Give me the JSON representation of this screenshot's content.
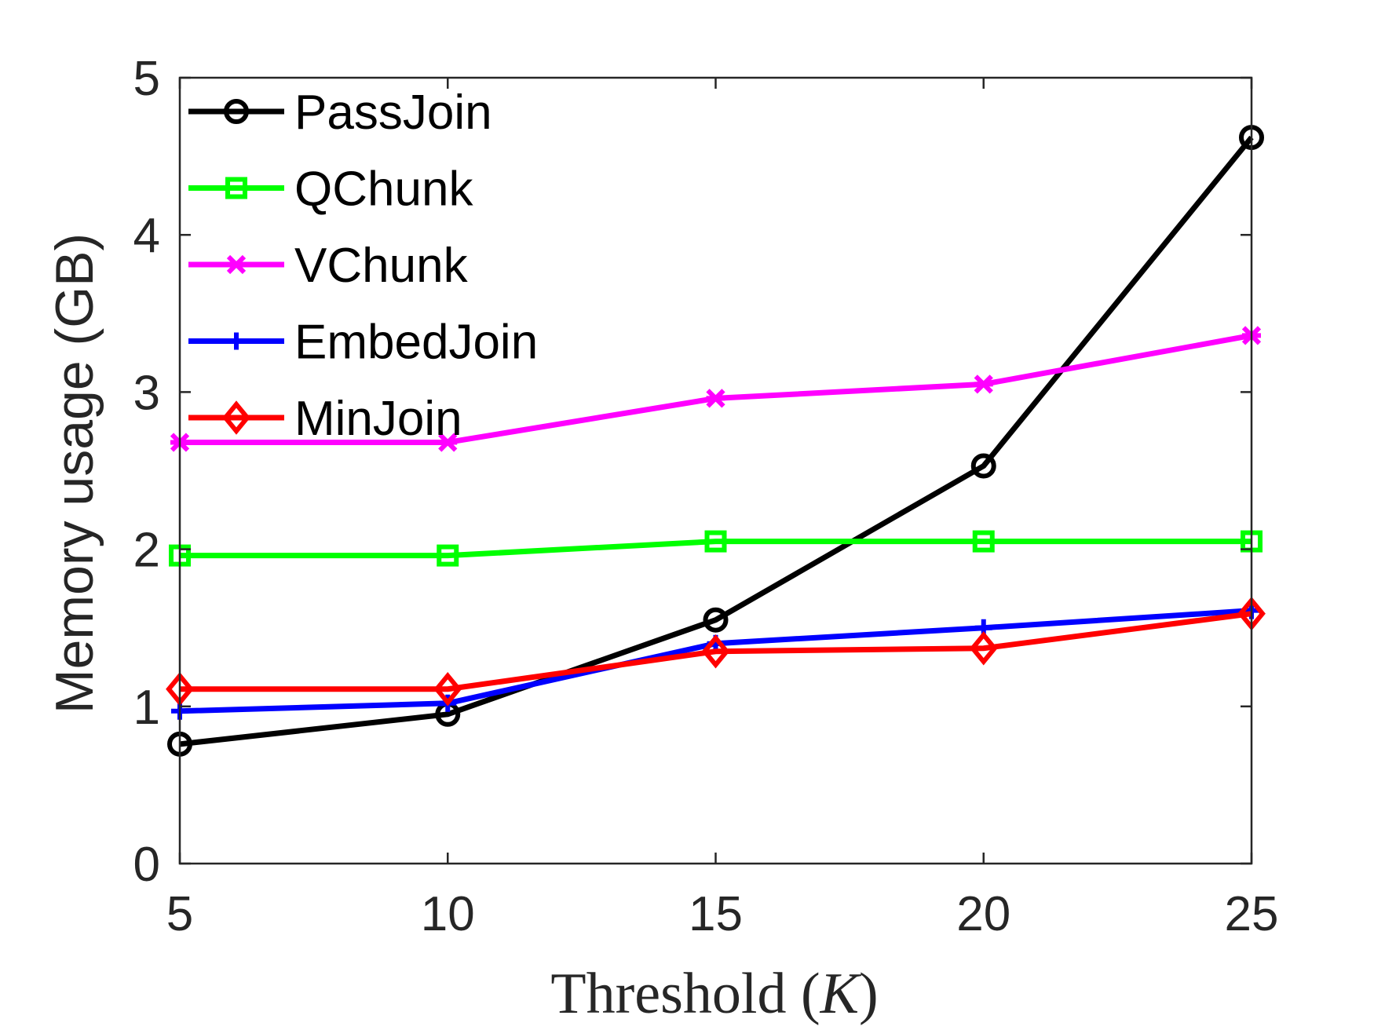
{
  "chart_data": {
    "type": "line",
    "title": "",
    "xlabel_text": "Threshold (",
    "xlabel_var": "K",
    "xlabel_close": ")",
    "ylabel": "Memory usage (GB)",
    "x": [
      5,
      10,
      15,
      20,
      25
    ],
    "xlim": [
      5,
      25
    ],
    "ylim": [
      0,
      5
    ],
    "xticks": [
      5,
      10,
      15,
      20,
      25
    ],
    "yticks": [
      0,
      1,
      2,
      3,
      4,
      5
    ],
    "grid": false,
    "legend_position": "top-left",
    "series": [
      {
        "name": "PassJoin",
        "color": "#000000",
        "marker": "circle",
        "values": [
          0.76,
          0.95,
          1.55,
          2.53,
          4.62
        ]
      },
      {
        "name": "QChunk",
        "color": "#00ff00",
        "marker": "square",
        "values": [
          1.96,
          1.96,
          2.05,
          2.05,
          2.05
        ]
      },
      {
        "name": "VChunk",
        "color": "#ff00ff",
        "marker": "star",
        "values": [
          2.68,
          2.68,
          2.96,
          3.05,
          3.36
        ]
      },
      {
        "name": "EmbedJoin",
        "color": "#0000ff",
        "marker": "plus",
        "values": [
          0.97,
          1.02,
          1.4,
          1.5,
          1.61
        ]
      },
      {
        "name": "MinJoin",
        "color": "#ff0000",
        "marker": "diamond",
        "values": [
          1.11,
          1.11,
          1.35,
          1.37,
          1.59
        ]
      }
    ]
  }
}
